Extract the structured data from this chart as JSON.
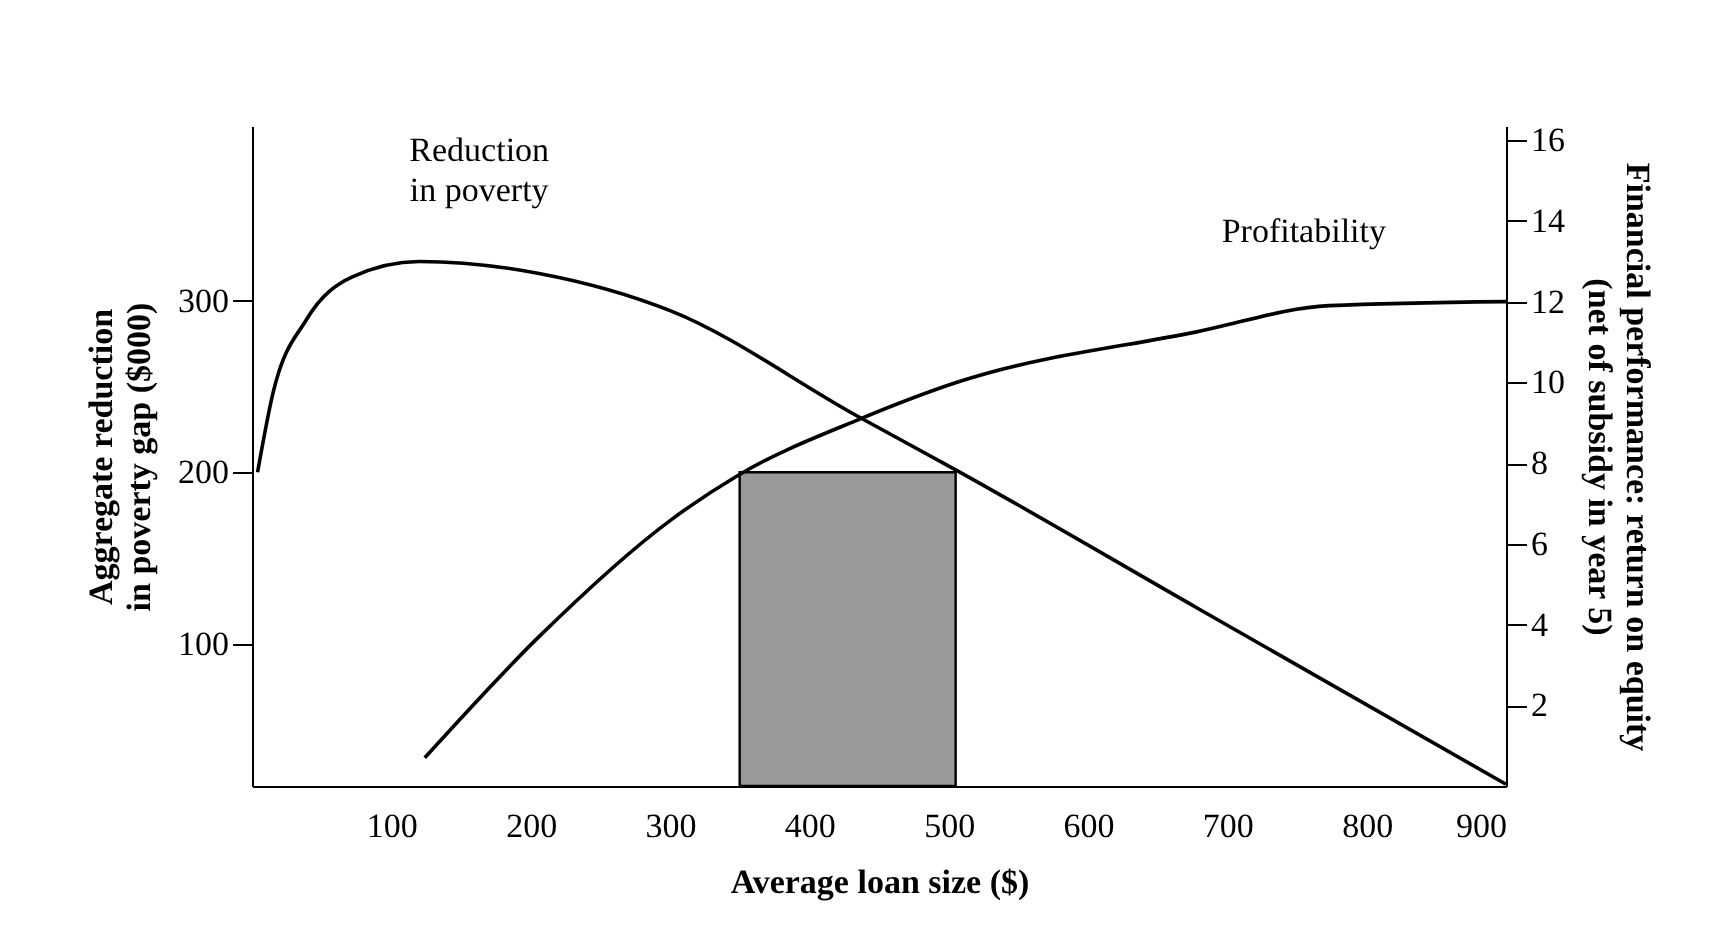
{
  "chart_data": {
    "type": "line",
    "xlabel": "Average loan size ($)",
    "ylabel": "Aggregate reduction\nin poverty gap ($000)",
    "y2label": "Financial performance: return on equity\n(net of subsidy in year 5)",
    "xlim": [
      0,
      900
    ],
    "xticks": [
      100,
      200,
      300,
      400,
      500,
      600,
      700,
      800,
      900
    ],
    "ylim": [
      17,
      402
    ],
    "yticks": [
      100,
      200,
      300
    ],
    "y2lim": [
      0,
      16.35
    ],
    "y2ticks": [
      2,
      4,
      6,
      8,
      10,
      12,
      14,
      16
    ],
    "grid": false,
    "series": [
      {
        "name": "Reduction in poverty",
        "color": "#000000",
        "x": [
          4,
          15,
          39,
          72,
          120,
          206,
          301,
          434,
          506,
          678,
          900
        ],
        "values": [
          200,
          246,
          289,
          314,
          323,
          316,
          294,
          233,
          201,
          121,
          18
        ]
      },
      {
        "name": "Profitability",
        "color": "#000000",
        "axis": "y2",
        "x": [
          124,
          206,
          301,
          349,
          437,
          506,
          678,
          773,
          900
        ],
        "values": [
          0.7,
          3.7,
          6.6,
          7.7,
          9.1,
          10.0,
          11.25,
          11.9,
          12.0
        ]
      },
      {
        "type": "area",
        "color": "#999999",
        "x": [
          350,
          505
        ],
        "values": [
          200,
          200
        ]
      }
    ]
  }
}
